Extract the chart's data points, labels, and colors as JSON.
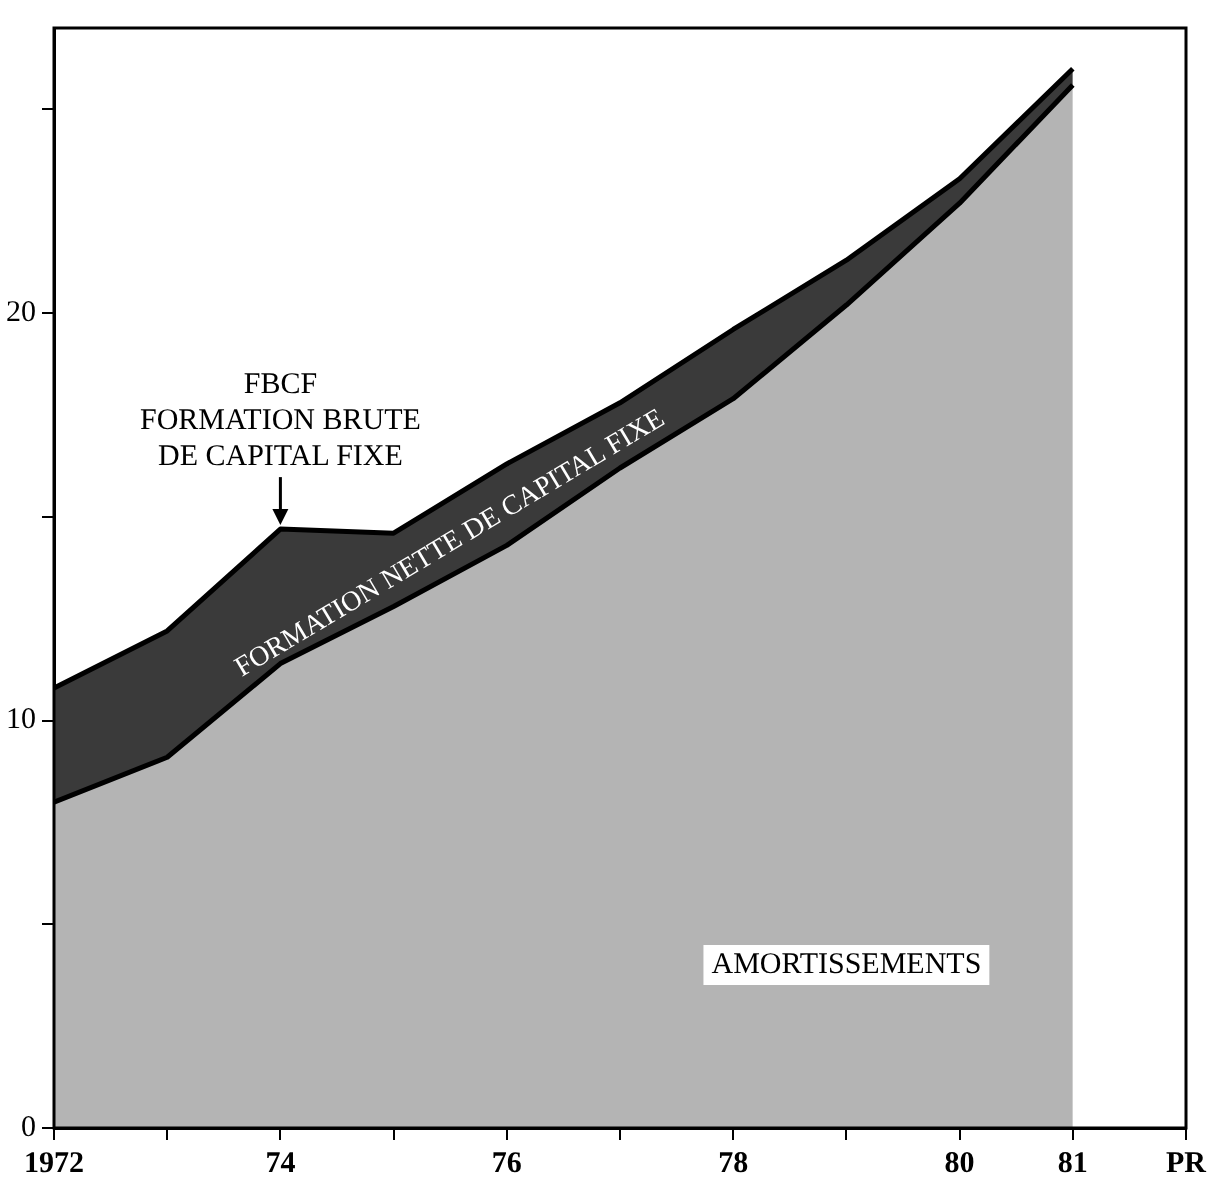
{
  "chart_data": {
    "type": "area",
    "stacked": true,
    "x": [
      1972,
      1973,
      1974,
      1975,
      1976,
      1977,
      1978,
      1979,
      1980,
      1981
    ],
    "series": [
      {
        "name": "AMORTISSEMENTS",
        "color": "#b4b4b4",
        "values": [
          8.0,
          9.1,
          11.4,
          12.8,
          14.3,
          16.2,
          17.9,
          20.2,
          22.7,
          25.6
        ]
      },
      {
        "name": "FORMATION NETTE DE CAPITAL FIXE",
        "color": "#3a3a3a",
        "values": [
          2.8,
          3.1,
          3.3,
          1.8,
          2.0,
          1.6,
          1.7,
          1.1,
          0.6,
          0.4
        ]
      }
    ],
    "xlim": [
      1972,
      1982
    ],
    "xticks": [
      1972,
      {
        "value": 1973,
        "label": null
      },
      {
        "value": 1974,
        "label": "74"
      },
      {
        "value": 1975,
        "label": null
      },
      {
        "value": 1976,
        "label": "76"
      },
      {
        "value": 1977,
        "label": null
      },
      {
        "value": 1978,
        "label": "78"
      },
      {
        "value": 1979,
        "label": null
      },
      {
        "value": 1980,
        "label": "80"
      },
      {
        "value": 1981,
        "label": "81"
      },
      {
        "value": 1982,
        "label": "PR"
      }
    ],
    "ylim": [
      0,
      27
    ],
    "yticks": [
      0,
      {
        "value": 5,
        "label": null
      },
      10,
      {
        "value": 15,
        "label": null
      },
      20,
      {
        "value": 25,
        "label": null
      }
    ],
    "annotations": [
      {
        "text": "FBCF\nFORMATION BRUTE\nDE CAPITAL FIXE",
        "x": 1974,
        "y": 14.7
      }
    ],
    "grid": false,
    "legend": false
  }
}
